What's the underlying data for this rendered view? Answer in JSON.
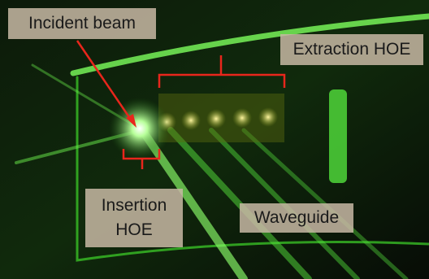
{
  "labels": {
    "incident": "Incident beam",
    "extraction": "Extraction HOE",
    "insertion": [
      "Insertion",
      "HOE"
    ],
    "waveguide": "Waveguide"
  }
}
